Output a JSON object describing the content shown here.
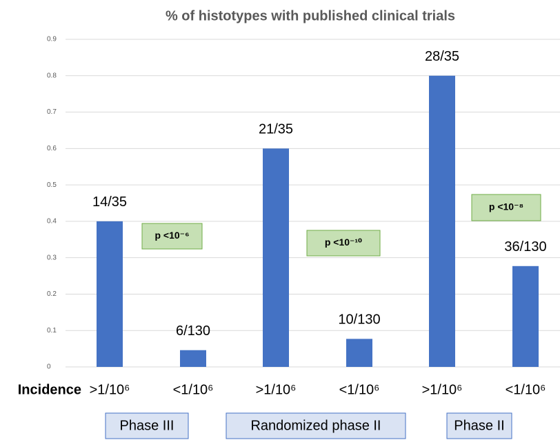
{
  "chart_data": {
    "type": "bar",
    "title": "% of  histotypes with  published clinical trials",
    "x_label": "Incidence",
    "categories": [
      ">1/10⁶",
      "<1/10⁶",
      ">1/10⁶",
      "<1/10⁶",
      ">1/10⁶",
      "<1/10⁶"
    ],
    "values": [
      0.4,
      0.046,
      0.6,
      0.077,
      0.8,
      0.277
    ],
    "value_labels": [
      "14/35",
      "6/130",
      "21/35",
      "10/130",
      "28/35",
      "36/130"
    ],
    "color": "#4472c4",
    "ylim": [
      0,
      0.9
    ],
    "yticks": [
      0,
      0.1,
      0.2,
      0.3,
      0.4,
      0.5,
      0.6,
      0.7,
      0.8,
      0.9
    ],
    "grid": true,
    "annotations": [
      "p <10⁻⁶",
      "p <10⁻¹⁰",
      "p <10⁻⁸"
    ],
    "groups": [
      "Phase III",
      "Randomized phase II",
      "Phase II"
    ]
  }
}
